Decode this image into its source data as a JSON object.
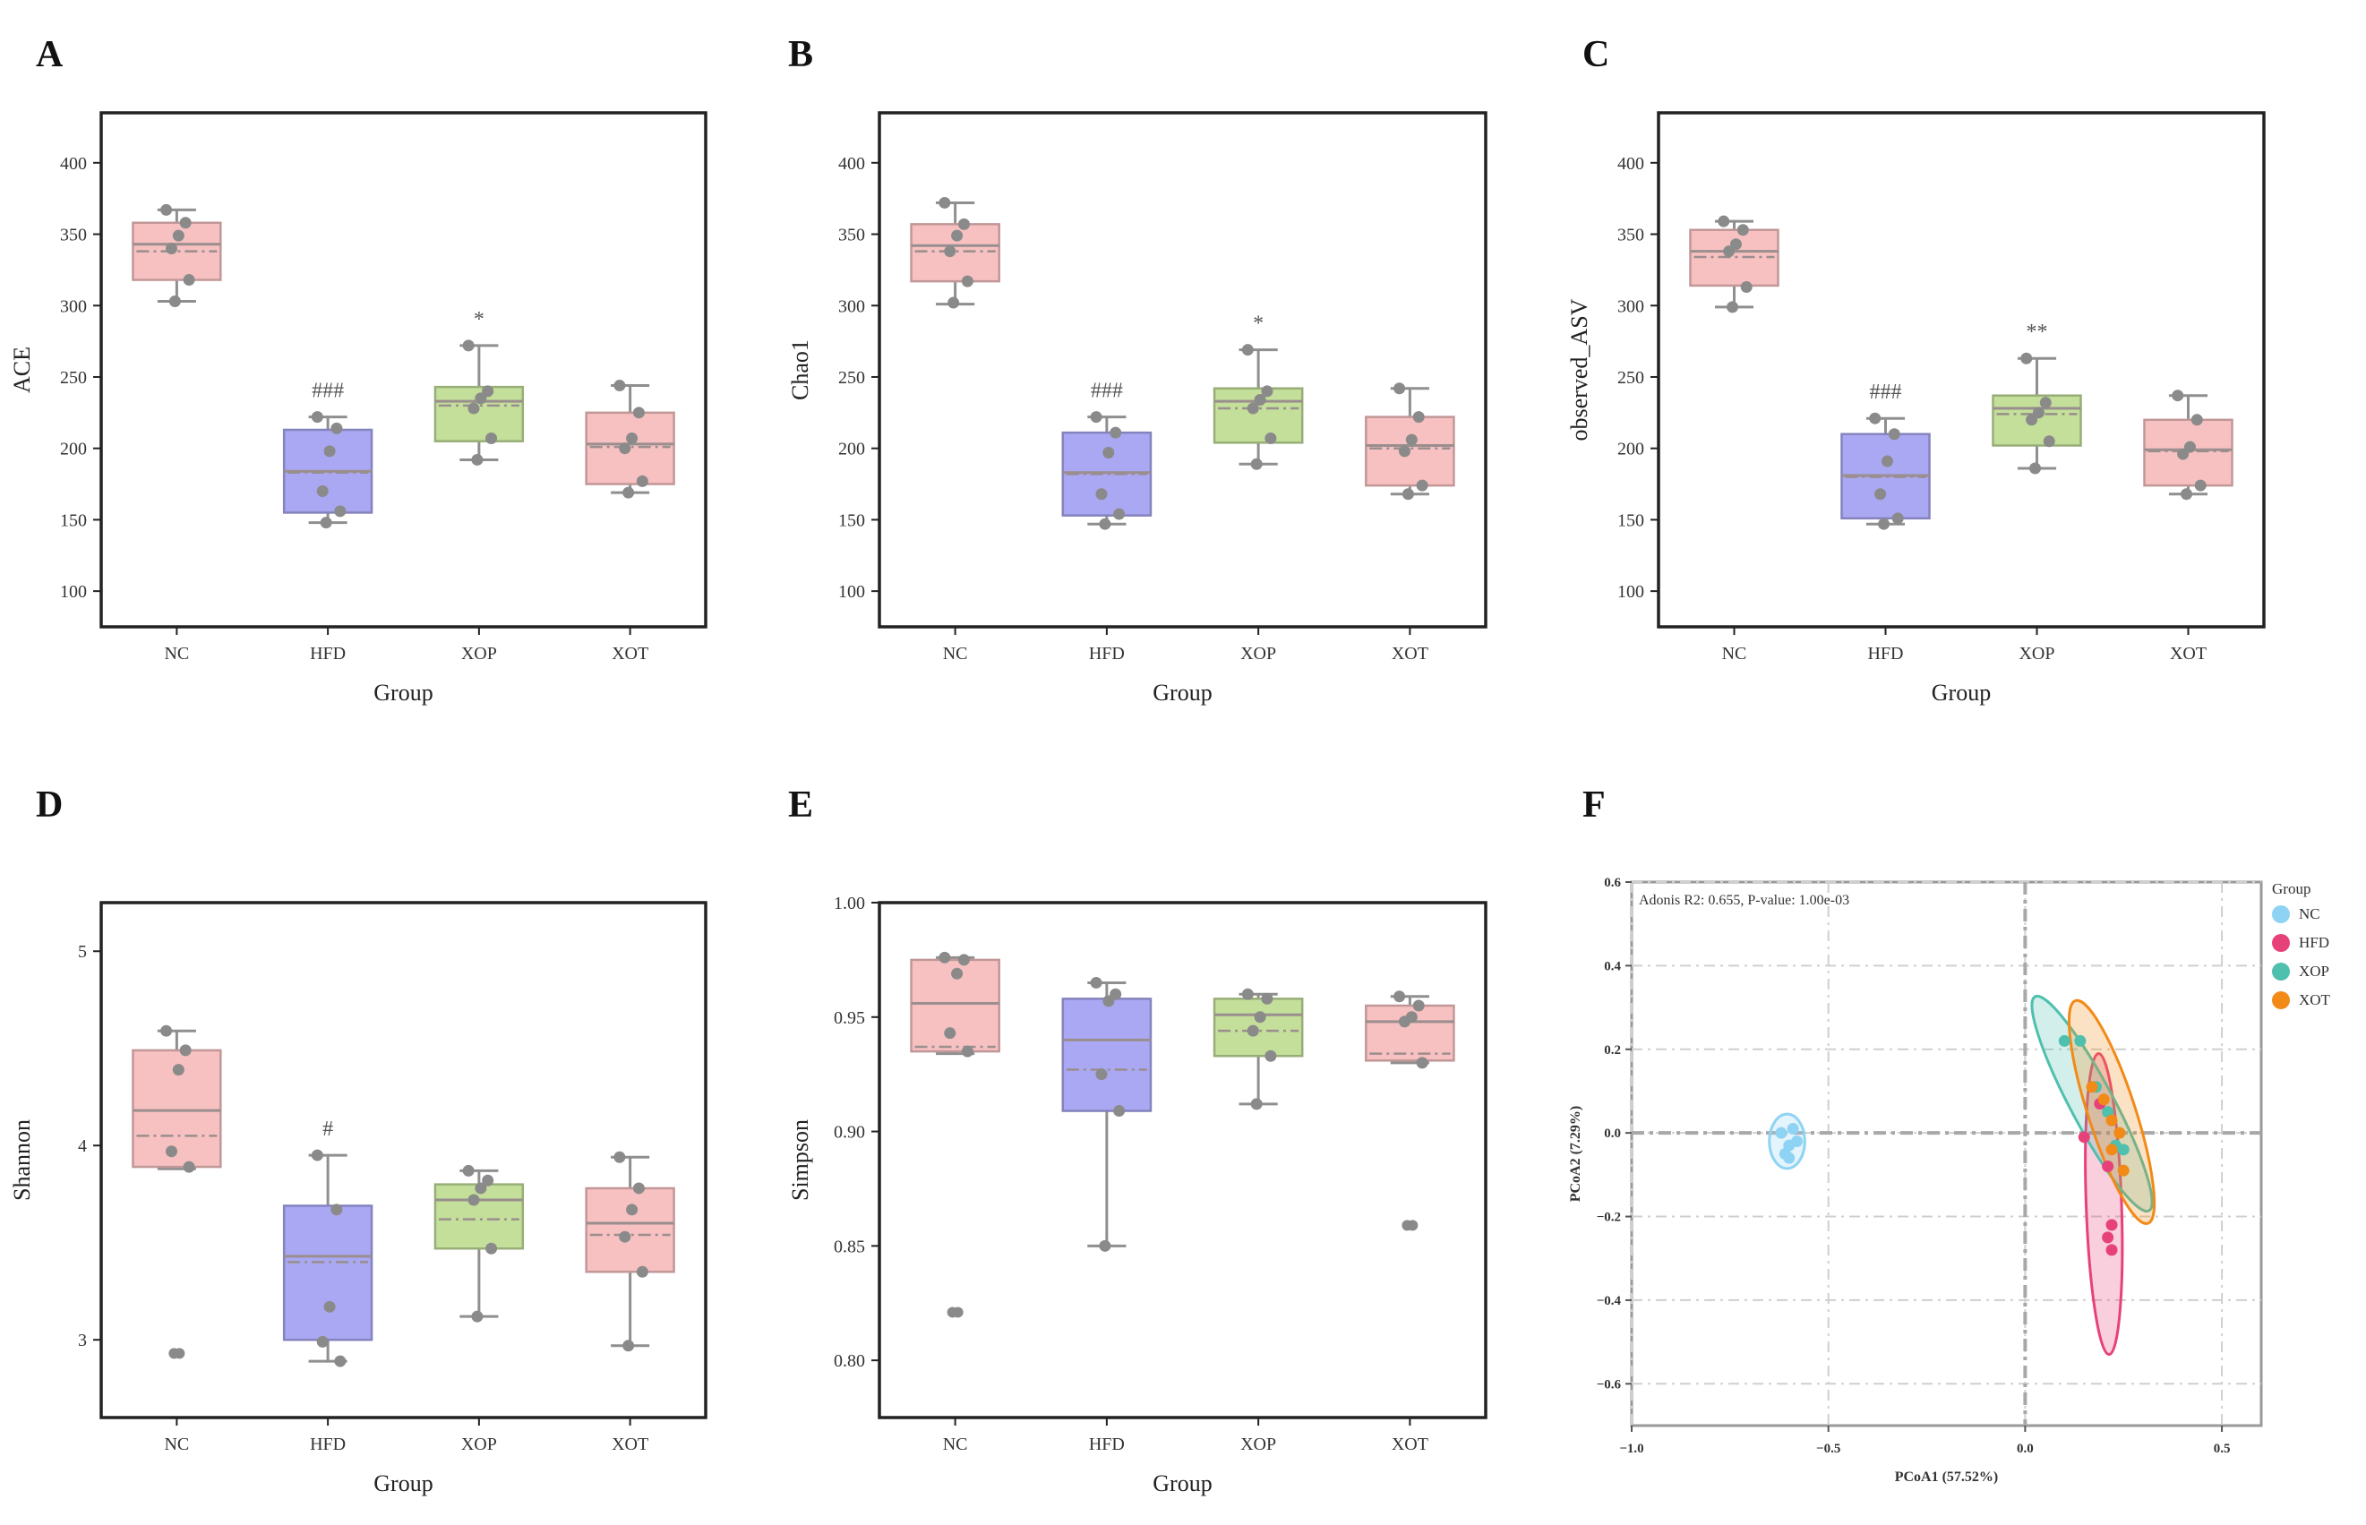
{
  "figure": {
    "panels": [
      "A",
      "B",
      "C",
      "D",
      "E",
      "F"
    ],
    "group_axis_label": "Group"
  },
  "chart_data": [
    {
      "id": "A",
      "type": "box",
      "xlabel": "Group",
      "ylabel": "ACE",
      "ylim": [
        75,
        435
      ],
      "yticks": [
        100,
        150,
        200,
        250,
        300,
        350,
        400
      ],
      "categories": [
        "NC",
        "HFD",
        "XOP",
        "XOT"
      ],
      "boxes": [
        {
          "group": "NC",
          "color": "#f7c1c1",
          "whislo": 303,
          "q1": 318,
          "med": 343,
          "mean": 338,
          "q3": 358,
          "whishi": 367,
          "points": [
            367,
            358,
            349,
            340,
            318,
            303
          ],
          "outliers": [],
          "sig": ""
        },
        {
          "group": "HFD",
          "color": "#aaa8f2",
          "whislo": 148,
          "q1": 155,
          "med": 184,
          "mean": 183,
          "q3": 213,
          "whishi": 222,
          "points": [
            222,
            214,
            198,
            170,
            156,
            148
          ],
          "outliers": [],
          "sig": "###"
        },
        {
          "group": "XOP",
          "color": "#c3df9a",
          "whislo": 192,
          "q1": 205,
          "med": 233,
          "mean": 230,
          "q3": 243,
          "whishi": 272,
          "points": [
            272,
            240,
            235,
            228,
            207,
            192
          ],
          "outliers": [],
          "sig": "*"
        },
        {
          "group": "XOT",
          "color": "#f7c1c1",
          "whislo": 169,
          "q1": 175,
          "med": 203,
          "mean": 201,
          "q3": 225,
          "whishi": 244,
          "points": [
            244,
            225,
            207,
            200,
            177,
            169
          ],
          "outliers": [],
          "sig": ""
        }
      ]
    },
    {
      "id": "B",
      "type": "box",
      "xlabel": "Group",
      "ylabel": "Chao1",
      "ylim": [
        75,
        435
      ],
      "yticks": [
        100,
        150,
        200,
        250,
        300,
        350,
        400
      ],
      "categories": [
        "NC",
        "HFD",
        "XOP",
        "XOT"
      ],
      "boxes": [
        {
          "group": "NC",
          "color": "#f7c1c1",
          "whislo": 301,
          "q1": 317,
          "med": 342,
          "mean": 338,
          "q3": 357,
          "whishi": 372,
          "points": [
            372,
            357,
            349,
            338,
            317,
            302
          ],
          "outliers": [],
          "sig": ""
        },
        {
          "group": "HFD",
          "color": "#aaa8f2",
          "whislo": 147,
          "q1": 153,
          "med": 183,
          "mean": 182,
          "q3": 211,
          "whishi": 222,
          "points": [
            222,
            211,
            197,
            168,
            154,
            147
          ],
          "outliers": [],
          "sig": "###"
        },
        {
          "group": "XOP",
          "color": "#c3df9a",
          "whislo": 189,
          "q1": 204,
          "med": 233,
          "mean": 228,
          "q3": 242,
          "whishi": 269,
          "points": [
            269,
            240,
            234,
            228,
            207,
            189
          ],
          "outliers": [],
          "sig": "*"
        },
        {
          "group": "XOT",
          "color": "#f7c1c1",
          "whislo": 168,
          "q1": 174,
          "med": 202,
          "mean": 200,
          "q3": 222,
          "whishi": 242,
          "points": [
            242,
            222,
            206,
            198,
            174,
            168
          ],
          "outliers": [],
          "sig": ""
        }
      ]
    },
    {
      "id": "C",
      "type": "box",
      "xlabel": "Group",
      "ylabel": "observed_ASV",
      "ylim": [
        75,
        435
      ],
      "yticks": [
        100,
        150,
        200,
        250,
        300,
        350,
        400
      ],
      "categories": [
        "NC",
        "HFD",
        "XOP",
        "XOT"
      ],
      "boxes": [
        {
          "group": "NC",
          "color": "#f7c1c1",
          "whislo": 299,
          "q1": 314,
          "med": 338,
          "mean": 334,
          "q3": 353,
          "whishi": 359,
          "points": [
            359,
            353,
            343,
            338,
            313,
            299
          ],
          "outliers": [],
          "sig": ""
        },
        {
          "group": "HFD",
          "color": "#aaa8f2",
          "whislo": 147,
          "q1": 151,
          "med": 181,
          "mean": 180,
          "q3": 210,
          "whishi": 221,
          "points": [
            221,
            210,
            191,
            168,
            151,
            147
          ],
          "outliers": [],
          "sig": "###"
        },
        {
          "group": "XOP",
          "color": "#c3df9a",
          "whislo": 186,
          "q1": 202,
          "med": 228,
          "mean": 224,
          "q3": 237,
          "whishi": 263,
          "points": [
            263,
            232,
            225,
            220,
            205,
            186
          ],
          "outliers": [],
          "sig": "**"
        },
        {
          "group": "XOT",
          "color": "#f7c1c1",
          "whislo": 168,
          "q1": 174,
          "med": 199,
          "mean": 198,
          "q3": 220,
          "whishi": 237,
          "points": [
            237,
            220,
            201,
            196,
            174,
            168
          ],
          "outliers": [],
          "sig": ""
        }
      ]
    },
    {
      "id": "D",
      "type": "box",
      "xlabel": "Group",
      "ylabel": "Shannon",
      "ylim": [
        2.6,
        5.25
      ],
      "yticks": [
        3,
        4,
        5
      ],
      "categories": [
        "NC",
        "HFD",
        "XOP",
        "XOT"
      ],
      "boxes": [
        {
          "group": "NC",
          "color": "#f7c1c1",
          "whislo": 3.88,
          "q1": 3.89,
          "med": 4.18,
          "mean": 4.05,
          "q3": 4.49,
          "whishi": 4.59,
          "points": [
            4.59,
            4.49,
            4.39,
            3.97,
            3.89
          ],
          "outliers": [
            2.93
          ],
          "sig": ""
        },
        {
          "group": "HFD",
          "color": "#aaa8f2",
          "whislo": 2.89,
          "q1": 3.0,
          "med": 3.43,
          "mean": 3.4,
          "q3": 3.69,
          "whishi": 3.95,
          "points": [
            3.95,
            3.67,
            3.17,
            2.99,
            2.89
          ],
          "outliers": [],
          "sig": "#"
        },
        {
          "group": "XOP",
          "color": "#c3df9a",
          "whislo": 3.12,
          "q1": 3.47,
          "med": 3.72,
          "mean": 3.62,
          "q3": 3.8,
          "whishi": 3.87,
          "points": [
            3.87,
            3.82,
            3.78,
            3.72,
            3.47,
            3.12
          ],
          "outliers": [],
          "sig": ""
        },
        {
          "group": "XOT",
          "color": "#f7c1c1",
          "whislo": 2.97,
          "q1": 3.35,
          "med": 3.6,
          "mean": 3.54,
          "q3": 3.78,
          "whishi": 3.94,
          "points": [
            3.94,
            3.78,
            3.67,
            3.53,
            3.35,
            2.97
          ],
          "outliers": [],
          "sig": ""
        }
      ]
    },
    {
      "id": "E",
      "type": "box",
      "xlabel": "Group",
      "ylabel": "Simpson",
      "ylim": [
        0.775,
        1.0
      ],
      "yticks": [
        0.8,
        0.85,
        0.9,
        0.95,
        1.0
      ],
      "ytick_labels": [
        "0.80",
        "0.85",
        "0.90",
        "0.95",
        "1.00"
      ],
      "categories": [
        "NC",
        "HFD",
        "XOP",
        "XOT"
      ],
      "boxes": [
        {
          "group": "NC",
          "color": "#f7c1c1",
          "whislo": 0.934,
          "q1": 0.935,
          "med": 0.956,
          "mean": 0.937,
          "q3": 0.975,
          "whishi": 0.976,
          "points": [
            0.976,
            0.975,
            0.969,
            0.943,
            0.935
          ],
          "outliers": [
            0.821
          ],
          "sig": ""
        },
        {
          "group": "HFD",
          "color": "#aaa8f2",
          "whislo": 0.85,
          "q1": 0.909,
          "med": 0.94,
          "mean": 0.927,
          "q3": 0.958,
          "whishi": 0.965,
          "points": [
            0.965,
            0.96,
            0.957,
            0.925,
            0.909,
            0.85
          ],
          "outliers": [],
          "sig": ""
        },
        {
          "group": "XOP",
          "color": "#c3df9a",
          "whislo": 0.912,
          "q1": 0.933,
          "med": 0.951,
          "mean": 0.944,
          "q3": 0.958,
          "whishi": 0.96,
          "points": [
            0.96,
            0.958,
            0.95,
            0.944,
            0.933,
            0.912
          ],
          "outliers": [],
          "sig": ""
        },
        {
          "group": "XOT",
          "color": "#f7c1c1",
          "whislo": 0.93,
          "q1": 0.931,
          "med": 0.948,
          "mean": 0.934,
          "q3": 0.955,
          "whishi": 0.959,
          "points": [
            0.959,
            0.955,
            0.95,
            0.948,
            0.93
          ],
          "outliers": [
            0.859
          ],
          "sig": ""
        }
      ]
    },
    {
      "id": "F",
      "type": "scatter",
      "title": "Adonis R2: 0.655, P-value: 1.00e-03",
      "xlabel": "PCoA1 (57.52%)",
      "ylabel": "PCoA2 (7.29%)",
      "xlim": [
        -1.0,
        0.6
      ],
      "ylim": [
        -0.7,
        0.6
      ],
      "xticks": [
        -1.0,
        -0.5,
        0.0,
        0.5
      ],
      "xtick_labels": [
        "−1.0",
        "−0.5",
        "0.0",
        "0.5"
      ],
      "yticks": [
        -0.6,
        -0.4,
        -0.2,
        0.0,
        0.2,
        0.4,
        0.6
      ],
      "ytick_labels": [
        "−0.6",
        "−0.4",
        "−0.2",
        "0.0",
        "0.2",
        "0.4",
        "0.6"
      ],
      "legend_title": "Group",
      "series": [
        {
          "name": "NC",
          "color": "#8fd3f4",
          "points": [
            [
              -0.62,
              0.0
            ],
            [
              -0.6,
              -0.03
            ],
            [
              -0.59,
              0.01
            ],
            [
              -0.61,
              -0.05
            ],
            [
              -0.6,
              -0.06
            ],
            [
              -0.58,
              -0.02
            ]
          ],
          "ellipse": {
            "cx": -0.605,
            "cy": -0.02,
            "rx": 0.045,
            "ry": 0.065,
            "angle": 0
          }
        },
        {
          "name": "HFD",
          "color": "#e7417a",
          "points": [
            [
              0.15,
              -0.01
            ],
            [
              0.19,
              0.07
            ],
            [
              0.21,
              -0.08
            ],
            [
              0.22,
              -0.22
            ],
            [
              0.21,
              -0.25
            ],
            [
              0.22,
              -0.28
            ]
          ],
          "ellipse": {
            "cx": 0.2,
            "cy": -0.17,
            "rx": 0.045,
            "ry": 0.36,
            "angle": 2
          }
        },
        {
          "name": "XOP",
          "color": "#4fbfae",
          "points": [
            [
              0.1,
              0.22
            ],
            [
              0.14,
              0.22
            ],
            [
              0.18,
              0.11
            ],
            [
              0.21,
              0.05
            ],
            [
              0.23,
              -0.03
            ],
            [
              0.25,
              -0.04
            ]
          ],
          "ellipse": {
            "cx": 0.17,
            "cy": 0.07,
            "rx": 0.055,
            "ry": 0.29,
            "angle": 28
          }
        },
        {
          "name": "XOT",
          "color": "#f28a17",
          "points": [
            [
              0.17,
              0.11
            ],
            [
              0.2,
              0.08
            ],
            [
              0.22,
              0.03
            ],
            [
              0.24,
              0.0
            ],
            [
              0.22,
              -0.04
            ],
            [
              0.25,
              -0.09
            ]
          ],
          "ellipse": {
            "cx": 0.22,
            "cy": 0.05,
            "rx": 0.06,
            "ry": 0.28,
            "angle": 18
          }
        }
      ]
    }
  ]
}
